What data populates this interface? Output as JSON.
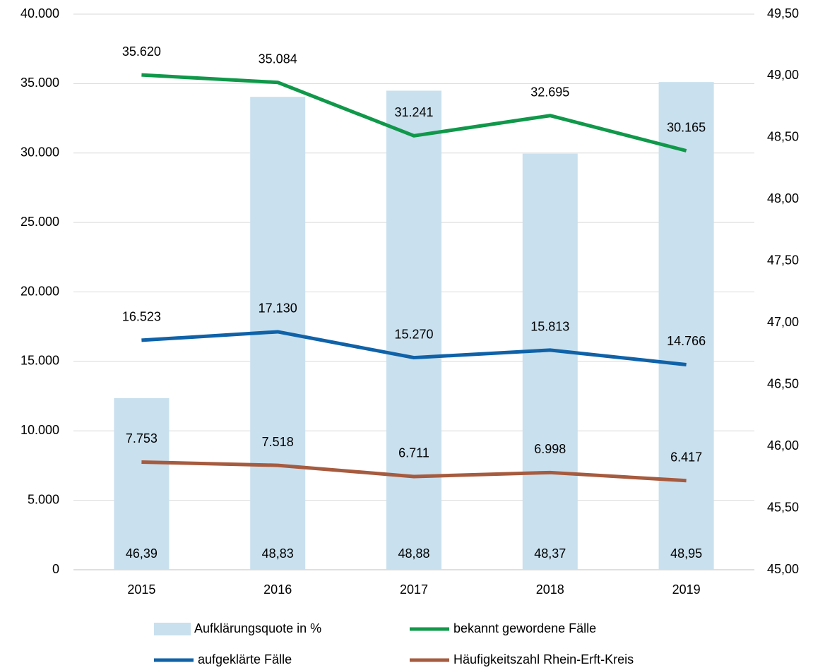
{
  "chart_data": {
    "type": "combo",
    "categories": [
      "2015",
      "2016",
      "2017",
      "2018",
      "2019"
    ],
    "ylim": [
      0,
      40000
    ],
    "yticks": [
      0,
      {
        "value": 5000,
        "label": "5.000"
      },
      {
        "value": 10000,
        "label": "10.000"
      },
      {
        "value": 15000,
        "label": "15.000"
      },
      {
        "value": 20000,
        "label": "20.000"
      },
      {
        "value": 25000,
        "label": "25.000"
      },
      {
        "value": 30000,
        "label": "30.000"
      },
      {
        "value": 35000,
        "label": "35.000"
      },
      {
        "value": 40000,
        "label": "40.000"
      }
    ],
    "y2lim": [
      45,
      49.5
    ],
    "y2ticks": [
      {
        "value": 45,
        "label": "45,00"
      },
      {
        "value": 45.5,
        "label": "45,50"
      },
      {
        "value": 46,
        "label": "46,00"
      },
      {
        "value": 46.5,
        "label": "46,50"
      },
      {
        "value": 47,
        "label": "47,00"
      },
      {
        "value": 47.5,
        "label": "47,50"
      },
      {
        "value": 48,
        "label": "48,00"
      },
      {
        "value": 48.5,
        "label": "48,50"
      },
      {
        "value": 49,
        "label": "49,00"
      },
      {
        "value": 49.5,
        "label": "49,50"
      }
    ],
    "grid": true,
    "legend": "bottom",
    "series": [
      {
        "name": "Aufklärungsquote in %",
        "type": "bar",
        "axis": "y2",
        "color": "#c9e0ee",
        "values": [
          46.39,
          48.83,
          48.88,
          48.37,
          48.95
        ],
        "value_labels": [
          "46,39",
          "48,83",
          "48,88",
          "48,37",
          "48,95"
        ]
      },
      {
        "name": "bekannt gewordene Fälle",
        "type": "line",
        "color": "#10984a",
        "values": [
          35620,
          35084,
          31241,
          32695,
          30165
        ],
        "value_labels": [
          "35.620",
          "35.084",
          "31.241",
          "32.695",
          "30.165"
        ]
      },
      {
        "name": "aufgeklärte Fälle",
        "type": "line",
        "color": "#0f62a8",
        "values": [
          16523,
          17130,
          15270,
          15813,
          14766
        ],
        "value_labels": [
          "16.523",
          "17.130",
          "15.270",
          "15.813",
          "14.766"
        ]
      },
      {
        "name": "Häufigkeitszahl Rhein-Erft-Kreis",
        "type": "line",
        "color": "#a65b3f",
        "values": [
          7753,
          7518,
          6711,
          6998,
          6417
        ],
        "value_labels": [
          "7.753",
          "7.518",
          "6.711",
          "6.998",
          "6.417"
        ]
      }
    ]
  }
}
